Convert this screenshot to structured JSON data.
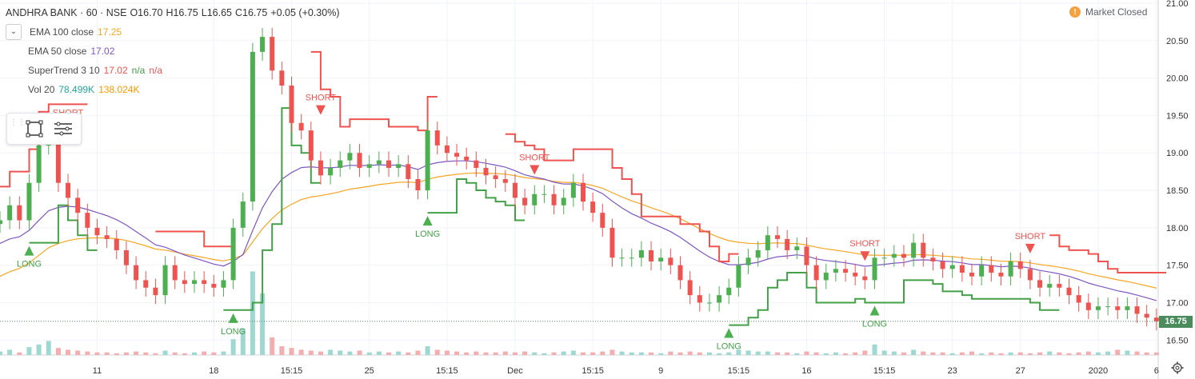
{
  "header": {
    "symbol": "ANDHRA BANK · 60 · NSE",
    "open": "O16.70",
    "high": "H16.75",
    "low": "L16.65",
    "close": "C16.75",
    "change": "+0.05 (+0.30%)"
  },
  "indicators": [
    {
      "label": "EMA 100 close",
      "value": "17.25",
      "color": "#f5a623"
    },
    {
      "label": "EMA 50 close",
      "value": "17.02",
      "color": "#7e57c2"
    },
    {
      "label": "SuperTrend 3 10",
      "value": "17.02",
      "extra1": "n/a",
      "extra2": "n/a",
      "color": "#ef5350",
      "extra1_color": "#43a047",
      "extra2_color": "#ef5350"
    },
    {
      "label": "Vol 20",
      "value": "78.499K",
      "extra1": "138.024K",
      "color": "#26a69a",
      "extra1_color": "#ff9800"
    }
  ],
  "market_status": {
    "label": "Market Closed",
    "icon": "!"
  },
  "toolbar": {
    "items": [
      "drag-grip-icon",
      "rectangle-select-icon",
      "menu-lines-icon"
    ]
  },
  "last_price": "16.75",
  "colors": {
    "up": "#4caf50",
    "down": "#ef5350",
    "ema100": "#f5a623",
    "ema50": "#7e57c2",
    "st_red": "#ef5350",
    "st_green": "#43a047",
    "vol_up": "#9fd8d1",
    "vol_down": "#f2aeb0"
  },
  "chart_data": {
    "type": "candlestick",
    "title": "ANDHRA BANK · 60 · NSE",
    "ylim": [
      16.3,
      21.0
    ],
    "y_ticks": [
      "21.00",
      "20.50",
      "20.00",
      "19.50",
      "19.00",
      "18.50",
      "18.00",
      "17.50",
      "17.00",
      "16.50"
    ],
    "y_tick_values": [
      21.0,
      20.5,
      20.0,
      19.5,
      19.0,
      18.5,
      18.0,
      17.5,
      17.0,
      16.5
    ],
    "x_ticks": [
      {
        "i": 10,
        "label": "11"
      },
      {
        "i": 22,
        "label": "18"
      },
      {
        "i": 30,
        "label": "15:15"
      },
      {
        "i": 38,
        "label": "25"
      },
      {
        "i": 46,
        "label": "15:15"
      },
      {
        "i": 53,
        "label": "Dec"
      },
      {
        "i": 61,
        "label": "15:15"
      },
      {
        "i": 68,
        "label": "9"
      },
      {
        "i": 76,
        "label": "15:15"
      },
      {
        "i": 83,
        "label": "16"
      },
      {
        "i": 91,
        "label": "15:15"
      },
      {
        "i": 98,
        "label": "23"
      },
      {
        "i": 105,
        "label": "27"
      },
      {
        "i": 113,
        "label": "2020"
      },
      {
        "i": 119,
        "label": "6"
      }
    ],
    "closes": [
      18.1,
      18.3,
      18.1,
      18.6,
      19.1,
      19.2,
      18.6,
      18.4,
      18.2,
      18.0,
      17.9,
      17.85,
      17.7,
      17.5,
      17.3,
      17.2,
      17.1,
      17.5,
      17.3,
      17.25,
      17.3,
      17.25,
      17.2,
      17.3,
      18.0,
      18.35,
      20.35,
      20.55,
      20.1,
      19.9,
      19.4,
      19.3,
      18.9,
      18.7,
      18.8,
      18.9,
      19.0,
      18.8,
      18.85,
      18.9,
      18.8,
      18.85,
      18.65,
      18.5,
      19.3,
      19.1,
      19.0,
      18.95,
      18.9,
      18.8,
      18.7,
      18.65,
      18.6,
      18.4,
      18.3,
      18.45,
      18.45,
      18.3,
      18.4,
      18.6,
      18.35,
      18.2,
      18.0,
      17.6,
      17.6,
      17.6,
      17.7,
      17.55,
      17.6,
      17.5,
      17.3,
      17.1,
      17.0,
      17.0,
      17.1,
      17.2,
      17.5,
      17.6,
      17.7,
      17.9,
      17.85,
      17.7,
      17.75,
      17.5,
      17.3,
      17.4,
      17.45,
      17.4,
      17.35,
      17.3,
      17.6,
      17.6,
      17.65,
      17.6,
      17.8,
      17.6,
      17.55,
      17.45,
      17.5,
      17.4,
      17.35,
      17.5,
      17.4,
      17.35,
      17.55,
      17.45,
      17.3,
      17.2,
      17.25,
      17.2,
      17.1,
      17.0,
      16.9,
      16.95,
      16.95,
      16.9,
      16.95,
      16.85,
      16.8,
      16.75
    ],
    "long_signals": [
      3,
      24,
      44,
      75,
      90
    ],
    "short_signals": [
      7,
      33,
      55,
      89,
      106
    ],
    "signal_labels": {
      "long": "LONG",
      "short": "SHORT"
    },
    "supertrend_red_segments": [
      [
        0,
        8
      ],
      [
        16,
        23
      ],
      [
        32,
        44
      ],
      [
        52,
        75
      ],
      [
        108,
        119
      ]
    ],
    "supertrend_green_segments": [
      [
        3,
        9
      ],
      [
        23,
        32
      ],
      [
        44,
        53
      ],
      [
        75,
        89
      ],
      [
        89,
        108
      ]
    ],
    "volumes": [
      4,
      6,
      3,
      9,
      12,
      16,
      8,
      6,
      5,
      4,
      3,
      3,
      2,
      3,
      4,
      3,
      2,
      5,
      3,
      2,
      3,
      4,
      3,
      4,
      18,
      30,
      95,
      70,
      20,
      10,
      8,
      6,
      5,
      4,
      6,
      5,
      4,
      5,
      3,
      4,
      3,
      4,
      3,
      5,
      10,
      6,
      5,
      4,
      3,
      4,
      3,
      3,
      4,
      3,
      4,
      3,
      2,
      3,
      4,
      5,
      3,
      3,
      4,
      6,
      4,
      3,
      3,
      3,
      2,
      4,
      3,
      4,
      3,
      3,
      2,
      3,
      6,
      5,
      4,
      4,
      3,
      3,
      2,
      4,
      3,
      2,
      3,
      2,
      3,
      5,
      12,
      5,
      4,
      3,
      6,
      4,
      3,
      3,
      2,
      3,
      4,
      2,
      3,
      2,
      3,
      3,
      2,
      3,
      4,
      3,
      2,
      3,
      4,
      3,
      4,
      6,
      5,
      4,
      3,
      3
    ]
  }
}
